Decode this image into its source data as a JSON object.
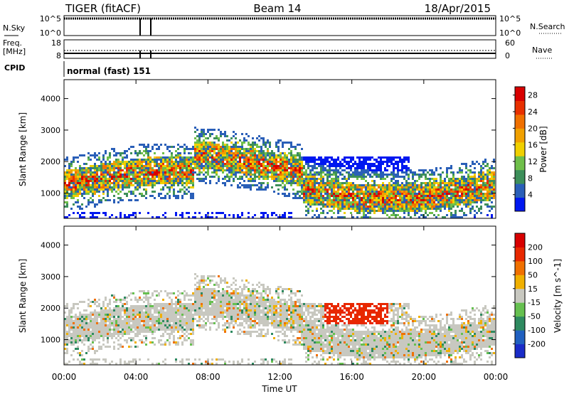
{
  "header": {
    "radar": "TIGER (fitACF)",
    "beam": "Beam 14",
    "date": "18/Apr/2015"
  },
  "status_panels": {
    "nsky_label": "N.Sky",
    "nsky_ticks": [
      "10^5",
      "10^0"
    ],
    "nsearch_label": "N.Search",
    "nsearch_ticks": [
      "10^5",
      "10^0"
    ],
    "freq_label": "Freq.",
    "freq_unit": "[MHz]",
    "freq_ticks": [
      "18",
      "8"
    ],
    "nave_label": "Nave",
    "nave_ticks": [
      "60",
      "0"
    ],
    "cpid_label": "CPID",
    "cpid_text": "normal (fast) 151"
  },
  "chart_data": [
    {
      "type": "heatmap",
      "name": "power-panel",
      "ylabel": "Slant Range [km]",
      "ylim": [
        200,
        4600
      ],
      "yticks": [
        "1000",
        "2000",
        "3000",
        "4000"
      ],
      "colorbar_label": "Power [dB]",
      "colorbar_ticks": [
        "4",
        "8",
        "12",
        "16",
        "20",
        "24",
        "28"
      ],
      "colorbar_range": [
        0,
        30
      ],
      "colors": [
        "#0018f0",
        "#2a5fb8",
        "#3d8f5a",
        "#6fbf4a",
        "#f0d000",
        "#f0a000",
        "#f07000",
        "#e83000",
        "#d80000"
      ]
    },
    {
      "type": "heatmap",
      "name": "velocity-panel",
      "ylabel": "Slant Range [km]",
      "ylim": [
        200,
        4600
      ],
      "yticks": [
        "1000",
        "2000",
        "3000",
        "4000"
      ],
      "colorbar_label": "Velocity [m s^-1]",
      "colorbar_ticks": [
        "200",
        "100",
        "50",
        "15",
        "-15",
        "-50",
        "-100",
        "-200"
      ],
      "colorbar_range": [
        -250,
        250
      ],
      "colors": [
        "#1a2cc8",
        "#2060c0",
        "#2e8a60",
        "#66c050",
        "#c8c8c0",
        "#f0b000",
        "#f07000",
        "#e82800",
        "#d80000"
      ]
    }
  ],
  "xaxis": {
    "ticks": [
      "00:00",
      "04:00",
      "08:00",
      "12:00",
      "16:00",
      "20:00",
      "00:00"
    ],
    "label": "Time UT"
  }
}
